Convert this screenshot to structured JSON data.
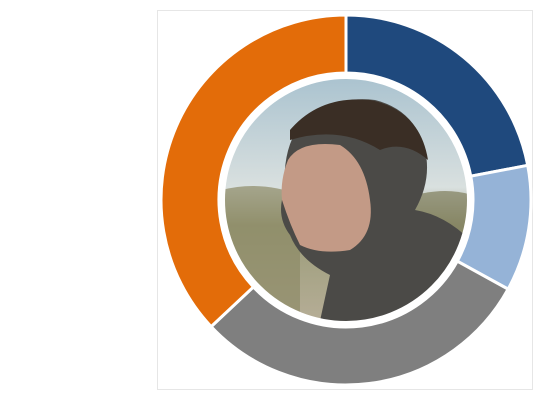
{
  "chart_data": {
    "type": "donut",
    "values": [
      22,
      11,
      30,
      37
    ],
    "colors": [
      "#1f497d",
      "#95b3d7",
      "#7f7f7f",
      "#e36c09"
    ]
  }
}
